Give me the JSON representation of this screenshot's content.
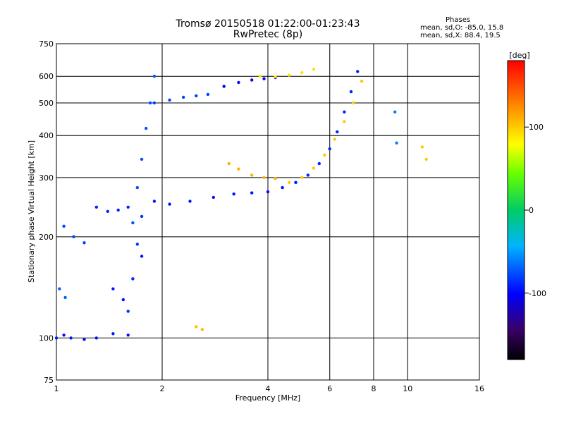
{
  "chart_data": {
    "type": "scatter",
    "title": "Tromsø 20150518 01:22:00-01:23:43",
    "subtitle": "RwPretec (8p)",
    "xlabel": "Frequency [MHz]",
    "ylabel": "Stationary phase Virtual Height [km]",
    "x_scale": "log",
    "y_scale": "log",
    "xlim": [
      1,
      16
    ],
    "ylim": [
      75,
      750
    ],
    "x_ticks": [
      1,
      2,
      4,
      6,
      8,
      10,
      16
    ],
    "y_ticks": [
      75,
      100,
      200,
      300,
      400,
      500,
      600,
      750
    ],
    "grid": true,
    "colorbar": {
      "label": "[deg]",
      "range": [
        -180,
        180
      ],
      "ticks": [
        100,
        0,
        -100
      ]
    },
    "annotations": {
      "header": "Phases",
      "line1": "mean, sd,O:  -85.0, 15.8",
      "line2": "mean, sd,X:  88.4, 19.5"
    },
    "traces": [
      {
        "x": [
          1.0,
          1.05,
          1.1,
          1.2,
          1.3,
          1.45,
          1.6
        ],
        "y": [
          100,
          102,
          100,
          99,
          100,
          103,
          102
        ],
        "phase": -95
      },
      {
        "x": [
          1.02,
          1.06
        ],
        "y": [
          140,
          132
        ],
        "phase": -70
      },
      {
        "x": [
          1.05,
          1.12,
          1.2
        ],
        "y": [
          215,
          200,
          192
        ],
        "phase": -80
      },
      {
        "x": [
          1.45,
          1.55,
          1.65,
          1.75
        ],
        "y": [
          140,
          130,
          150,
          175
        ],
        "phase": -95
      },
      {
        "x": [
          1.65,
          1.7,
          1.75,
          1.8,
          1.85,
          1.9
        ],
        "y": [
          220,
          280,
          340,
          420,
          500,
          600
        ],
        "phase": -75
      },
      {
        "x": [
          1.6,
          1.65,
          1.7,
          1.75
        ],
        "y": [
          120,
          150,
          190,
          230
        ],
        "phase": -85
      },
      {
        "x": [
          1.3,
          1.4,
          1.5,
          1.6
        ],
        "y": [
          245,
          238,
          240,
          245
        ],
        "phase": -90
      },
      {
        "x": [
          1.9,
          2.1,
          2.4,
          2.8,
          3.2,
          3.6,
          4.0,
          4.4,
          4.8
        ],
        "y": [
          255,
          250,
          255,
          262,
          268,
          270,
          272,
          280,
          290
        ],
        "phase": -95
      },
      {
        "x": [
          4.8,
          5.2,
          5.6,
          6.0,
          6.3,
          6.6,
          6.9,
          7.2
        ],
        "y": [
          290,
          305,
          330,
          365,
          410,
          470,
          540,
          620
        ],
        "phase": -90
      },
      {
        "x": [
          4.6,
          5.0,
          5.4,
          5.8,
          6.2,
          6.6,
          7.0,
          7.4
        ],
        "y": [
          290,
          300,
          320,
          350,
          390,
          440,
          500,
          580
        ],
        "phase": 100
      },
      {
        "x": [
          3.1,
          3.3,
          3.6,
          3.9,
          4.2
        ],
        "y": [
          330,
          318,
          305,
          300,
          298
        ],
        "phase": 110
      },
      {
        "x": [
          1.9,
          2.1,
          2.3,
          2.5,
          2.7
        ],
        "y": [
          500,
          510,
          520,
          525,
          530
        ],
        "phase": -80
      },
      {
        "x": [
          3.0,
          3.3,
          3.6,
          3.9,
          4.2
        ],
        "y": [
          560,
          575,
          585,
          590,
          595
        ],
        "phase": -105
      },
      {
        "x": [
          3.8,
          4.2,
          4.6,
          5.0,
          5.4
        ],
        "y": [
          600,
          598,
          605,
          615,
          630
        ],
        "phase": 90
      },
      {
        "x": [
          2.5,
          2.6
        ],
        "y": [
          108,
          106
        ],
        "phase": 105
      },
      {
        "x": [
          9.2,
          9.3
        ],
        "y": [
          470,
          380
        ],
        "phase": -60
      },
      {
        "x": [
          11.0,
          11.3
        ],
        "y": [
          370,
          340
        ],
        "phase": 100
      }
    ]
  }
}
